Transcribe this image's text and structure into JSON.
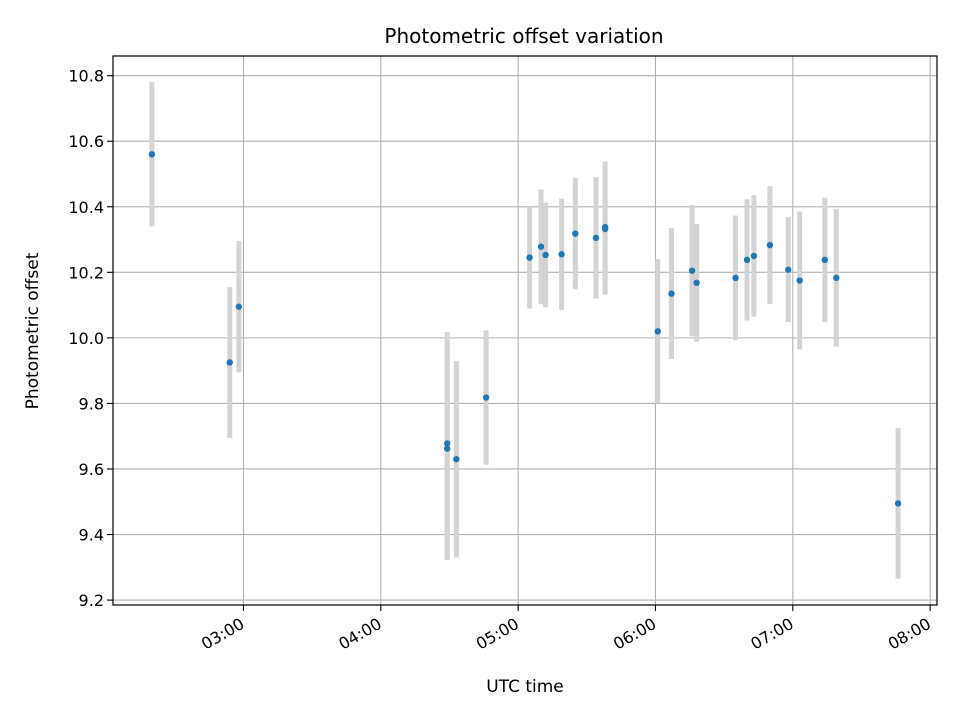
{
  "chart_data": {
    "type": "scatter",
    "title": "Photometric offset variation",
    "xlabel": "UTC time",
    "ylabel": "Photometric offset",
    "x_unit": "UTC time (HH:MM)",
    "xlim": [
      "02:03",
      "08:03"
    ],
    "ylim": [
      9.185,
      10.86
    ],
    "x_ticks": [
      "03:00",
      "04:00",
      "05:00",
      "06:00",
      "07:00",
      "08:00"
    ],
    "y_ticks": [
      "9.2",
      "9.4",
      "9.6",
      "9.8",
      "10.0",
      "10.2",
      "10.4",
      "10.6",
      "10.8"
    ],
    "y_tick_values": [
      9.2,
      9.4,
      9.6,
      9.8,
      10.0,
      10.2,
      10.4,
      10.6,
      10.8
    ],
    "grid": true,
    "point_color": "#1f77b4",
    "errorbar_color": "#d3d3d3",
    "series": [
      {
        "points": [
          {
            "x": "02:20",
            "y": 10.56,
            "yerr": 0.22
          },
          {
            "x": "02:54",
            "y": 9.925,
            "yerr": 0.23
          },
          {
            "x": "02:58",
            "y": 10.095,
            "yerr": 0.2
          },
          {
            "x": "04:29",
            "y": 9.678,
            "yerr": 0.34
          },
          {
            "x": "04:29",
            "y": 9.662,
            "yerr": 0.34
          },
          {
            "x": "04:33",
            "y": 9.63,
            "yerr": 0.3
          },
          {
            "x": "04:46",
            "y": 9.818,
            "yerr": 0.205
          },
          {
            "x": "05:05",
            "y": 10.245,
            "yerr": 0.155
          },
          {
            "x": "05:10",
            "y": 10.278,
            "yerr": 0.175
          },
          {
            "x": "05:12",
            "y": 10.253,
            "yerr": 0.16
          },
          {
            "x": "05:19",
            "y": 10.255,
            "yerr": 0.17
          },
          {
            "x": "05:25",
            "y": 10.318,
            "yerr": 0.17
          },
          {
            "x": "05:34",
            "y": 10.305,
            "yerr": 0.185
          },
          {
            "x": "05:38",
            "y": 10.338,
            "yerr": 0.2
          },
          {
            "x": "05:38",
            "y": 10.332,
            "yerr": 0.2
          },
          {
            "x": "06:01",
            "y": 10.02,
            "yerr": 0.22
          },
          {
            "x": "06:07",
            "y": 10.135,
            "yerr": 0.2
          },
          {
            "x": "06:16",
            "y": 10.205,
            "yerr": 0.2
          },
          {
            "x": "06:18",
            "y": 10.168,
            "yerr": 0.18
          },
          {
            "x": "06:35",
            "y": 10.183,
            "yerr": 0.19
          },
          {
            "x": "06:40",
            "y": 10.238,
            "yerr": 0.185
          },
          {
            "x": "06:43",
            "y": 10.25,
            "yerr": 0.185
          },
          {
            "x": "06:50",
            "y": 10.283,
            "yerr": 0.18
          },
          {
            "x": "06:58",
            "y": 10.208,
            "yerr": 0.16
          },
          {
            "x": "07:03",
            "y": 10.175,
            "yerr": 0.21
          },
          {
            "x": "07:14",
            "y": 10.238,
            "yerr": 0.19
          },
          {
            "x": "07:19",
            "y": 10.183,
            "yerr": 0.21
          },
          {
            "x": "07:46",
            "y": 9.495,
            "yerr": 0.23
          }
        ]
      }
    ]
  }
}
